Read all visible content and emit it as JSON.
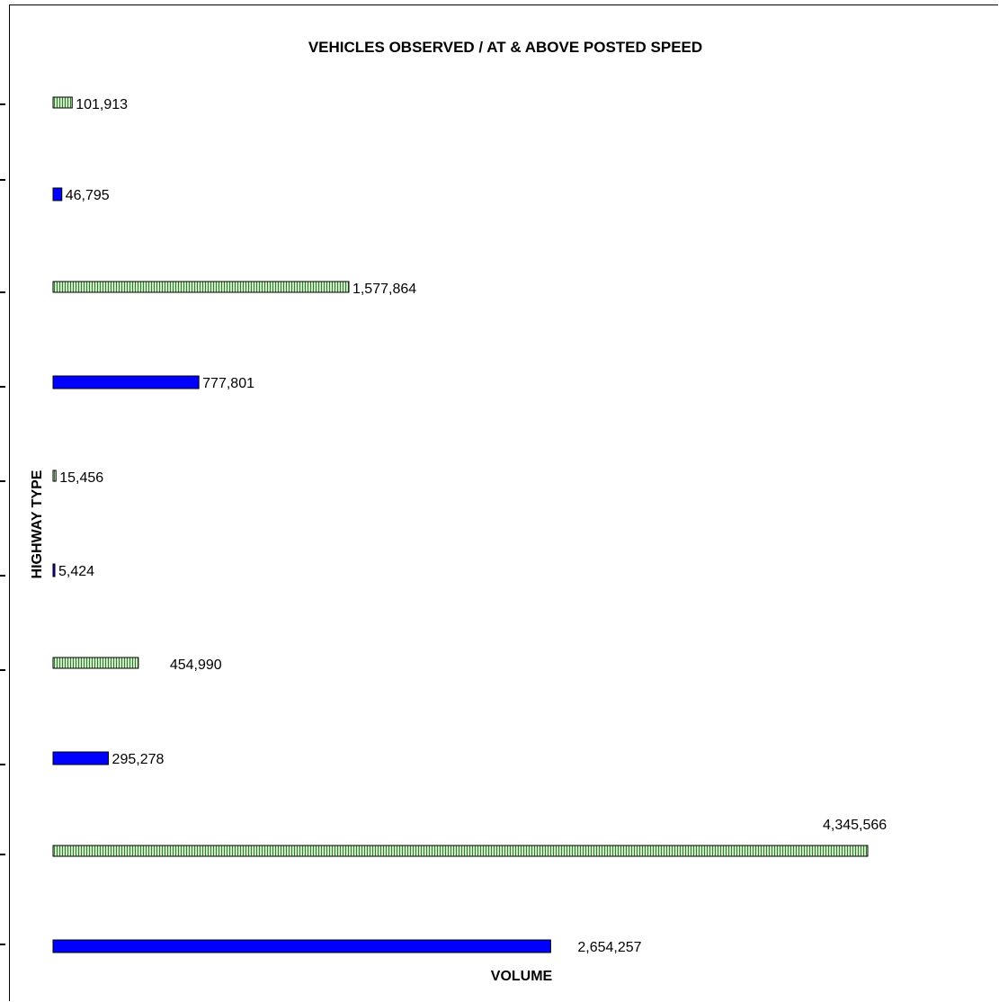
{
  "chart_data": {
    "type": "bar",
    "orientation": "horizontal",
    "title": "VEHICLES OBSERVED / AT & ABOVE POSTED SPEED",
    "xlabel": "VOLUME",
    "ylabel": "HIGHWAY TYPE",
    "xlim": [
      0,
      4500000
    ],
    "grid": false,
    "values": [
      2654257,
      4345566,
      295278,
      454990,
      5424,
      15456,
      777801,
      1577864,
      46795,
      101913
    ],
    "value_labels": [
      "2,654,257",
      "4,345,566",
      "295,278",
      "454,990",
      "5,424",
      "15,456",
      "777,801",
      "1,577,864",
      "46,795",
      "101,913"
    ],
    "bar_styles": [
      "solid",
      "hatched",
      "solid",
      "hatched",
      "solid",
      "hatched",
      "solid",
      "hatched",
      "solid",
      "hatched"
    ],
    "colors": {
      "solid_fill": "#0000ff",
      "hatched_fill": "#cfe8c4",
      "hatched_stripe": "#2e7d32",
      "border": "#000000"
    }
  }
}
